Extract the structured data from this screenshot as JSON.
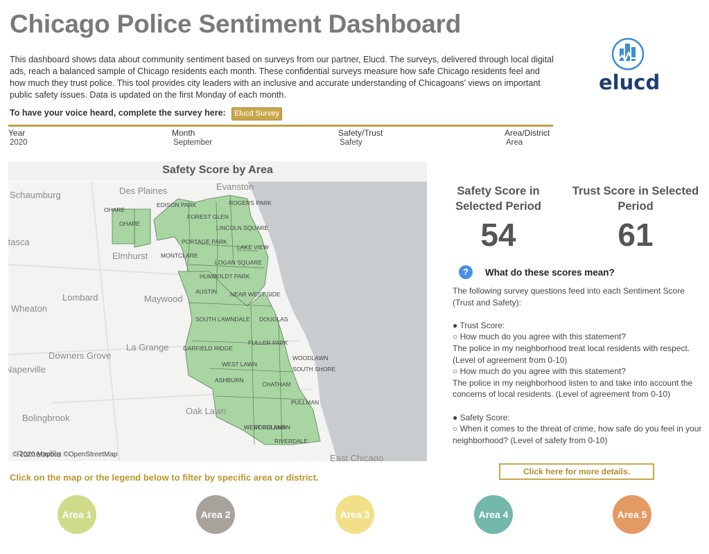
{
  "title": "Chicago Police Sentiment Dashboard",
  "intro": "This dashboard shows data about community sentiment based on surveys from our partner, Elucd. The surveys, delivered through local digital ads, reach a balanced sample of Chicago residents each month. These confidential surveys measure how safe Chicago residents feel and how much they trust police. This tool provides city leaders with an inclusive and accurate understanding of Chicagoans' views on important public safety issues. Data is updated on the first Monday of each month.",
  "logo": {
    "text": "elucd",
    "icon": "city-skyline-icon"
  },
  "voice": {
    "label": "To have your voice heard, complete the survey here:",
    "button": "Elucd Survey"
  },
  "filters": [
    {
      "label": "Year",
      "value": "2020"
    },
    {
      "label": "Month",
      "value": "September"
    },
    {
      "label": "Safety/Trust",
      "value": "Safety"
    },
    {
      "label": "Area/District",
      "value": "Area"
    }
  ],
  "map": {
    "title": "Safety Score by Area",
    "credit": "© 2020 Mapbox ©OpenStreetMap",
    "region_color": "#a8d5a2",
    "lake_color": "#c9ccce",
    "base_labels": [
      "Schaumburg",
      "Des Plaines",
      "Evanston",
      "Itasca",
      "Elmhurst",
      "Lombard",
      "Maywood",
      "Wheaton",
      "Downers Grove",
      "La Grange",
      "Naperville",
      "Bolingbrook",
      "Oak Lawn",
      "Romeoville",
      "East Chicago"
    ],
    "area_labels": [
      "OHARE",
      "OHARE",
      "EDISON PARK",
      "ROGERS PARK",
      "FOREST GLEN",
      "LINCOLN SQUARE",
      "PORTAGE PARK",
      "LAKE VIEW",
      "MONTCLARE",
      "LOGAN SQUARE",
      "HUMBOLDT PARK",
      "AUSTIN",
      "NEAR WEST SIDE",
      "SOUTH LAWNDALE",
      "DOUGLAS",
      "FULLER PARK",
      "GARFIELD RIDGE",
      "WEST LAWN",
      "WOODLAWN",
      "SOUTH SHORE",
      "ASHBURN",
      "CHATHAM",
      "PULLMAN",
      "ROSELAND",
      "WEST PULLMAN",
      "RIVERDALE"
    ]
  },
  "scores": {
    "safety_title": "Safety Score in Selected Period",
    "safety_value": "54",
    "trust_title": "Trust Score in Selected Period",
    "trust_value": "61"
  },
  "help": {
    "icon": "question-icon",
    "title": "What do these scores mean?",
    "lines": [
      "The following survey questions feed into each Sentiment Score (Trust and Safety):",
      " ",
      "● Trust Score:",
      "○ How much do you agree with this statement?",
      "The police in my neighborhood treat local residents with respect. (Level of agreement from 0-10)",
      "○ How much do you agree with this statement?",
      "The police in my neighborhood listen to and take into account the concerns of local residents. (Level of agreement from 0-10)",
      " ",
      "● Safety Score:",
      "○ When it comes to the threat of crime, how safe do you feel in your neighborhood? (Level of safety from 0-10)"
    ]
  },
  "more_button": "Click here for more details.",
  "filter_hint": "Click on the map or the legend below to filter by specific area or district.",
  "legend": [
    {
      "label": "Area 1",
      "color": "#cfdb8a"
    },
    {
      "label": "Area 2",
      "color": "#a8a29c"
    },
    {
      "label": "Area 3",
      "color": "#f2e089"
    },
    {
      "label": "Area 4",
      "color": "#74b7ab"
    },
    {
      "label": "Area 5",
      "color": "#e39a63"
    }
  ]
}
